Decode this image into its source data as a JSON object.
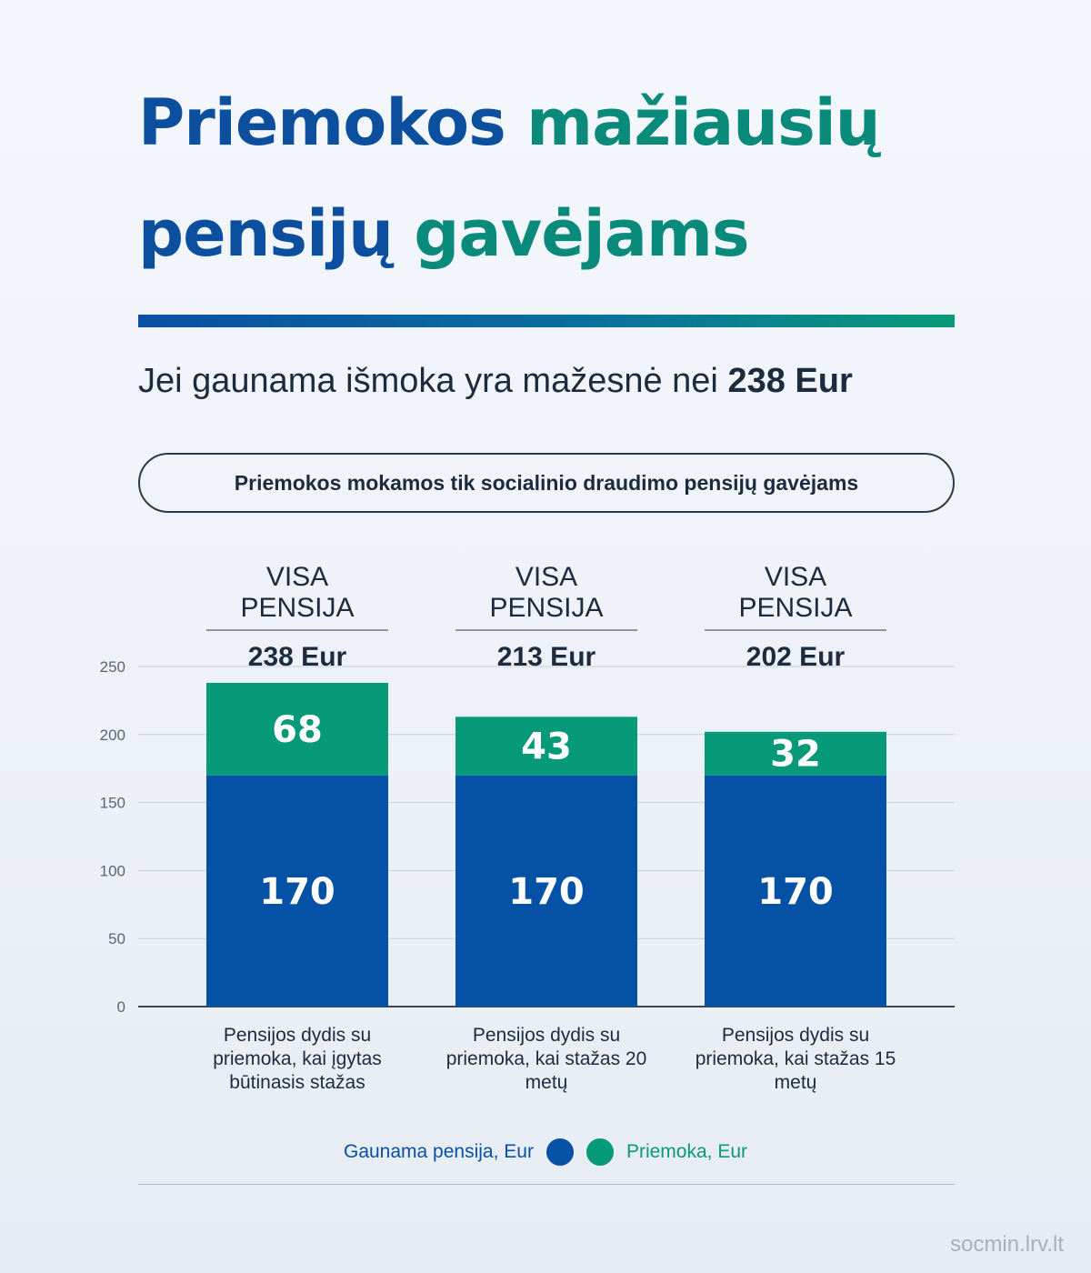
{
  "title": {
    "line1_a": "Priemokos",
    "line1_b": "mažiausių",
    "line2_a": "pensijų",
    "line2_b": "gavėjams"
  },
  "subtitle": {
    "text": "Jei gaunama išmoka yra mažesnė nei",
    "bold": "238 Eur"
  },
  "note": "Priemokos mokamos tik socialinio draudimo pensijų gavėjams",
  "columns": [
    {
      "label": "VISA PENSIJA",
      "total": "238 Eur",
      "category": "Pensijos dydis su priemoka, kai įgytas būtinasis stažas"
    },
    {
      "label": "VISA PENSIJA",
      "total": "213 Eur",
      "category": "Pensijos dydis su priemoka, kai stažas 20 metų"
    },
    {
      "label": "VISA PENSIJA",
      "total": "202 Eur",
      "category": "Pensijos dydis su priemoka, kai stažas 15 metų"
    }
  ],
  "chart_data": {
    "type": "bar",
    "stacked": true,
    "categories": [
      "Pensijos dydis su priemoka, kai įgytas būtinasis stažas",
      "Pensijos dydis su priemoka, kai stažas 20 metų",
      "Pensijos dydis su priemoka, kai stažas 15 metų"
    ],
    "series": [
      {
        "name": "Gaunama pensija, Eur",
        "values": [
          170,
          170,
          170
        ],
        "color": "#0551a5"
      },
      {
        "name": "Priemoka, Eur",
        "values": [
          68,
          43,
          32
        ],
        "color": "#069a78"
      }
    ],
    "ylim": [
      0,
      250
    ],
    "yticks": [
      0,
      50,
      100,
      150,
      200,
      250
    ],
    "grid": true,
    "legend": "bottom-center"
  },
  "legend": {
    "pension_label": "Gaunama pensija, Eur",
    "supplement_label": "Priemoka, Eur"
  },
  "footer": "socmin.lrv.lt",
  "colors": {
    "title_blue": "#0b4f9e",
    "title_green": "#0a8a7a",
    "bar_blue": "#0551a5",
    "bar_green": "#069a78"
  }
}
